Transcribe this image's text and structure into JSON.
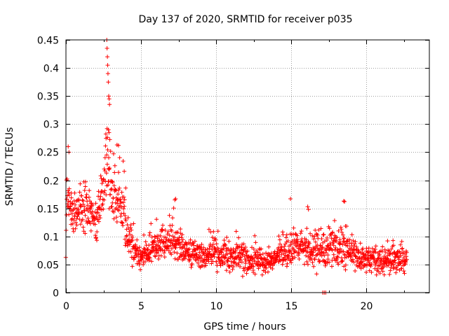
{
  "chart_data": {
    "type": "scatter",
    "title": "Day 137 of 2020, SRMTID for receiver p035",
    "xlabel": "GPS time / hours",
    "ylabel": "SRMTID / TECUs",
    "xlim": [
      0,
      24.2
    ],
    "ylim": [
      0,
      0.45
    ],
    "xticks": [
      0,
      5,
      10,
      15,
      20
    ],
    "yticks": [
      0,
      0.05,
      0.1,
      0.15,
      0.2,
      0.25,
      0.3,
      0.35,
      0.4,
      0.45
    ],
    "xtick_labels": [
      "0",
      "5",
      "10",
      "15",
      "20"
    ],
    "ytick_labels": [
      "0",
      "0.05",
      "0.1",
      "0.15",
      "0.2",
      "0.25",
      "0.3",
      "0.35",
      "0.4",
      "0.45"
    ],
    "grid": true,
    "marker": "+",
    "series": [
      {
        "name": "SRMTID",
        "color": "#ff0000",
        "profile": [
          [
            0.0,
            0.16,
            0.035,
            0.24
          ],
          [
            0.5,
            0.14,
            0.03,
            0.21
          ],
          [
            1.0,
            0.15,
            0.03,
            0.22
          ],
          [
            1.5,
            0.15,
            0.03,
            0.21
          ],
          [
            2.0,
            0.13,
            0.03,
            0.2
          ],
          [
            2.3,
            0.16,
            0.035,
            0.25
          ],
          [
            2.6,
            0.2,
            0.05,
            0.3
          ],
          [
            2.75,
            0.25,
            0.08,
            0.45
          ],
          [
            3.0,
            0.18,
            0.04,
            0.26
          ],
          [
            3.4,
            0.17,
            0.04,
            0.26
          ],
          [
            3.8,
            0.15,
            0.04,
            0.24
          ],
          [
            4.2,
            0.09,
            0.03,
            0.16
          ],
          [
            5.0,
            0.06,
            0.015,
            0.1
          ],
          [
            6.0,
            0.09,
            0.025,
            0.14
          ],
          [
            7.0,
            0.09,
            0.025,
            0.16
          ],
          [
            8.0,
            0.075,
            0.02,
            0.12
          ],
          [
            9.0,
            0.065,
            0.02,
            0.11
          ],
          [
            10.0,
            0.07,
            0.02,
            0.12
          ],
          [
            11.0,
            0.06,
            0.02,
            0.11
          ],
          [
            12.0,
            0.06,
            0.02,
            0.11
          ],
          [
            13.0,
            0.055,
            0.02,
            0.1
          ],
          [
            14.0,
            0.06,
            0.02,
            0.1
          ],
          [
            15.0,
            0.08,
            0.025,
            0.14
          ],
          [
            16.0,
            0.08,
            0.025,
            0.12
          ],
          [
            17.0,
            0.075,
            0.025,
            0.12
          ],
          [
            18.0,
            0.08,
            0.025,
            0.14
          ],
          [
            19.0,
            0.07,
            0.02,
            0.11
          ],
          [
            20.0,
            0.06,
            0.02,
            0.1
          ],
          [
            21.0,
            0.055,
            0.02,
            0.09
          ],
          [
            22.0,
            0.06,
            0.02,
            0.1
          ],
          [
            22.7,
            0.055,
            0.02,
            0.09
          ]
        ],
        "highlights": [
          [
            2.72,
            0.45
          ],
          [
            2.74,
            0.435
          ],
          [
            2.76,
            0.42
          ],
          [
            2.78,
            0.405
          ],
          [
            2.8,
            0.39
          ],
          [
            2.82,
            0.375
          ],
          [
            2.85,
            0.35
          ],
          [
            2.88,
            0.345
          ],
          [
            2.9,
            0.335
          ],
          [
            2.83,
            0.29
          ],
          [
            2.87,
            0.285
          ],
          [
            3.4,
            0.263
          ],
          [
            3.5,
            0.262
          ],
          [
            0.15,
            0.26
          ],
          [
            0.2,
            0.25
          ],
          [
            7.3,
            0.167
          ],
          [
            7.25,
            0.165
          ],
          [
            14.95,
            0.167
          ],
          [
            18.5,
            0.163
          ],
          [
            18.55,
            0.162
          ],
          [
            16.1,
            0.153
          ],
          [
            16.15,
            0.148
          ],
          [
            17.1,
            0.0
          ],
          [
            17.2,
            0.0
          ],
          [
            17.3,
            0.0
          ]
        ],
        "n_points": 1500
      }
    ]
  },
  "colors": {
    "series": "#ff0000",
    "grid": "#a0a0a0",
    "axis": "#000000"
  }
}
